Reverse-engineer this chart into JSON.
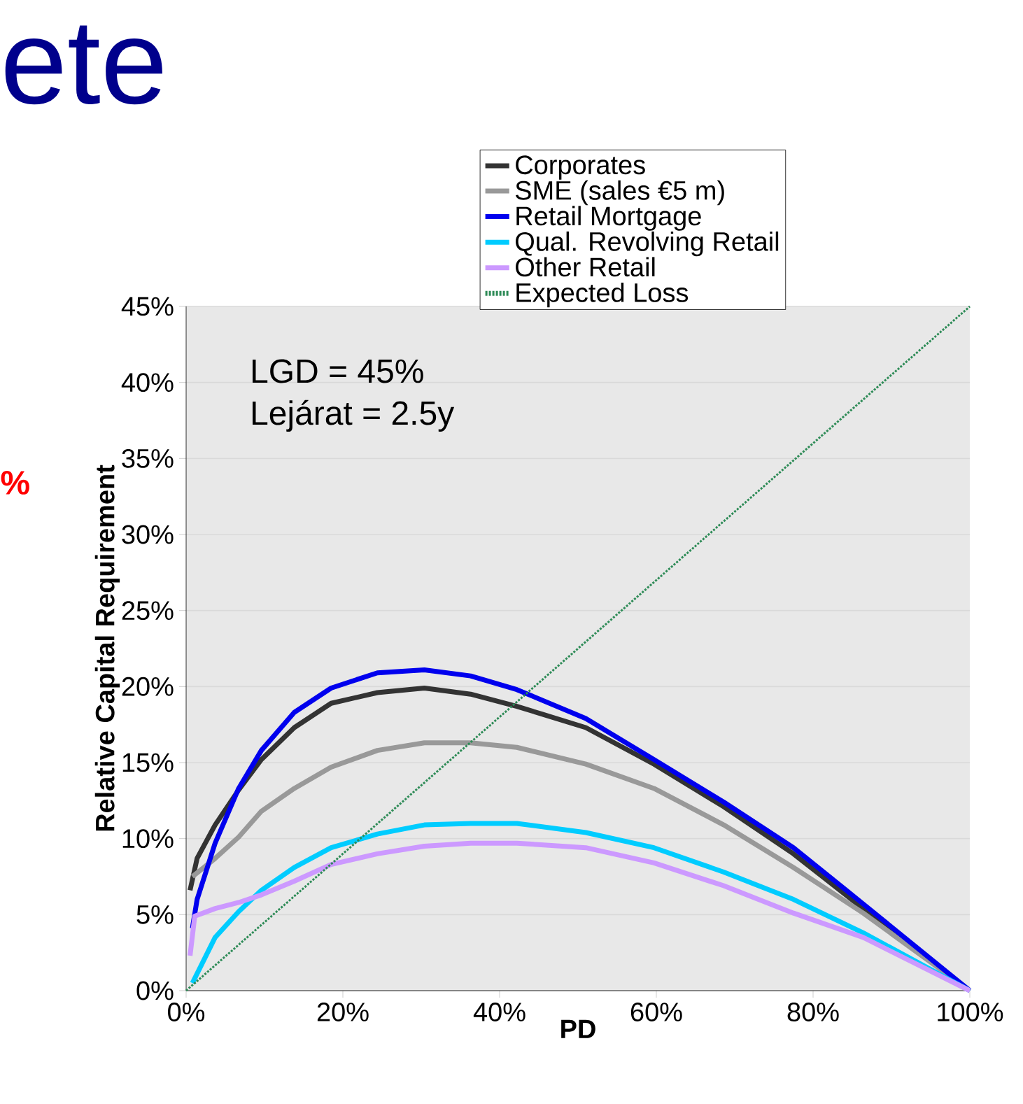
{
  "chart_data": {
    "type": "line",
    "title": "ete",
    "xlabel": "PD",
    "ylabel": "Relative Capital Requirement",
    "annotations": [
      "LGD = 45%",
      "Lejárat = 2.5y",
      "%"
    ],
    "xlim": [
      0,
      100
    ],
    "ylim": [
      0,
      45
    ],
    "xticks": [
      {
        "value": 0,
        "label": "0%"
      },
      {
        "value": 20,
        "label": "20%"
      },
      {
        "value": 40,
        "label": "40%"
      },
      {
        "value": 60,
        "label": "60%"
      },
      {
        "value": 80,
        "label": "80%"
      },
      {
        "value": 100,
        "label": "100%"
      }
    ],
    "yticks": [
      {
        "value": 0,
        "label": "0%"
      },
      {
        "value": 5,
        "label": "5%"
      },
      {
        "value": 10,
        "label": "10%"
      },
      {
        "value": 15,
        "label": "15%"
      },
      {
        "value": 20,
        "label": "20%"
      },
      {
        "value": 25,
        "label": "25%"
      },
      {
        "value": 30,
        "label": "30%"
      },
      {
        "value": 35,
        "label": "35%"
      },
      {
        "value": 40,
        "label": "40%"
      },
      {
        "value": 45,
        "label": "45%"
      }
    ],
    "grid": "y",
    "legend": "top",
    "series": [
      {
        "name": "Corporates",
        "color": "#333333",
        "x": [
          0.5,
          1.4,
          3.7,
          6.7,
          9.6,
          13.8,
          18.5,
          24.4,
          30.4,
          36.3,
          42.2,
          51,
          59.7,
          68.6,
          77.5,
          86.4,
          100
        ],
        "values": [
          6.6,
          8.7,
          10.9,
          13.2,
          15.2,
          17.3,
          18.9,
          19.6,
          19.9,
          19.5,
          18.7,
          17.3,
          14.9,
          12.1,
          9.0,
          5.4,
          0
        ]
      },
      {
        "name": "SME (sales €5 m)",
        "color": "#999999",
        "x": [
          0.8,
          3.7,
          6.7,
          9.6,
          13.8,
          18.5,
          24.4,
          30.4,
          36.3,
          42.2,
          51,
          59.7,
          68.6,
          77.5,
          86.4,
          100
        ],
        "values": [
          7.5,
          8.7,
          10.1,
          11.8,
          13.3,
          14.7,
          15.8,
          16.3,
          16.3,
          16.0,
          14.9,
          13.3,
          10.9,
          8.1,
          5.1,
          0
        ]
      },
      {
        "name": "Retail Mortgage",
        "color": "#0000ee",
        "x": [
          0.8,
          1.4,
          3.7,
          6.7,
          9.6,
          13.8,
          18.5,
          24.4,
          30.4,
          36.3,
          42.2,
          51,
          59.7,
          68.6,
          77.5,
          86.4,
          100
        ],
        "values": [
          4.1,
          6.0,
          9.7,
          13.3,
          15.8,
          18.3,
          19.9,
          20.9,
          21.1,
          20.7,
          19.8,
          17.9,
          15.2,
          12.4,
          9.4,
          5.7,
          0
        ]
      },
      {
        "name": "Qual. Revolving Retail",
        "color": "#00ccff",
        "x": [
          0.8,
          3.7,
          6.7,
          9.6,
          13.8,
          18.5,
          24.4,
          30.4,
          36.3,
          42.2,
          51,
          59.7,
          68.6,
          77.5,
          86.4,
          100
        ],
        "values": [
          0.5,
          3.5,
          5.2,
          6.6,
          8.1,
          9.4,
          10.3,
          10.9,
          11.0,
          11.0,
          10.4,
          9.4,
          7.8,
          6.0,
          3.8,
          0
        ]
      },
      {
        "name": "Other Retail",
        "color": "#cc99ff",
        "x": [
          0.5,
          1.1,
          3.7,
          6.7,
          9.6,
          13.8,
          18.5,
          24.4,
          30.4,
          36.3,
          42.2,
          51,
          59.7,
          68.6,
          77.5,
          86.4,
          100
        ],
        "values": [
          2.3,
          4.9,
          5.4,
          5.8,
          6.3,
          7.2,
          8.3,
          9.0,
          9.5,
          9.7,
          9.7,
          9.4,
          8.4,
          6.9,
          5.1,
          3.5,
          0
        ]
      },
      {
        "name": "Expected Loss",
        "color": "#2e8b57",
        "line_style": "dotted",
        "x": [
          0,
          100
        ],
        "values": [
          0,
          45
        ]
      }
    ]
  }
}
